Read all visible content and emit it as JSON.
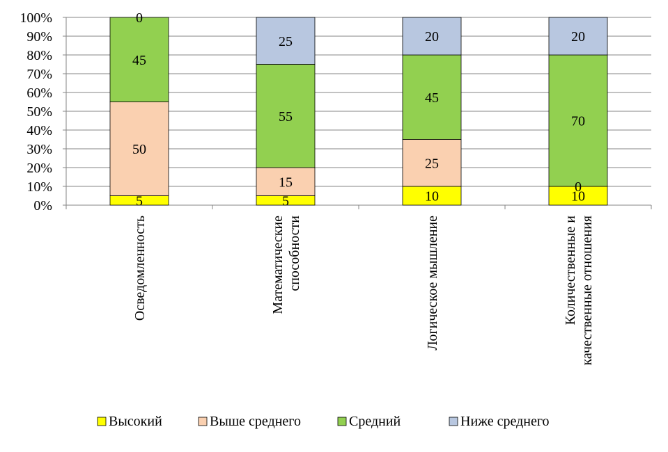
{
  "chart_data": {
    "type": "bar",
    "stacked": true,
    "normalized_percent": true,
    "categories": [
      [
        "Осведомленность"
      ],
      [
        "Математические",
        "способности"
      ],
      [
        "Логическое мышление"
      ],
      [
        "Количественные и",
        "качественные отношения"
      ]
    ],
    "series": [
      {
        "name": "Высокий",
        "color": "#ffff00",
        "values": [
          5,
          5,
          10,
          10
        ]
      },
      {
        "name": "Выше среднего",
        "color": "#fad0b0",
        "values": [
          50,
          15,
          25,
          0
        ]
      },
      {
        "name": "Средний",
        "color": "#92d050",
        "values": [
          45,
          55,
          45,
          70
        ]
      },
      {
        "name": "Ниже среднего",
        "color": "#b8c7e0",
        "values": [
          0,
          25,
          20,
          20
        ]
      }
    ],
    "y_ticks": [
      "0%",
      "10%",
      "20%",
      "30%",
      "40%",
      "50%",
      "60%",
      "70%",
      "80%",
      "90%",
      "100%"
    ],
    "ylim": [
      0,
      100
    ],
    "grid": true,
    "legend_position": "bottom",
    "title": "",
    "xlabel": "",
    "ylabel": ""
  }
}
